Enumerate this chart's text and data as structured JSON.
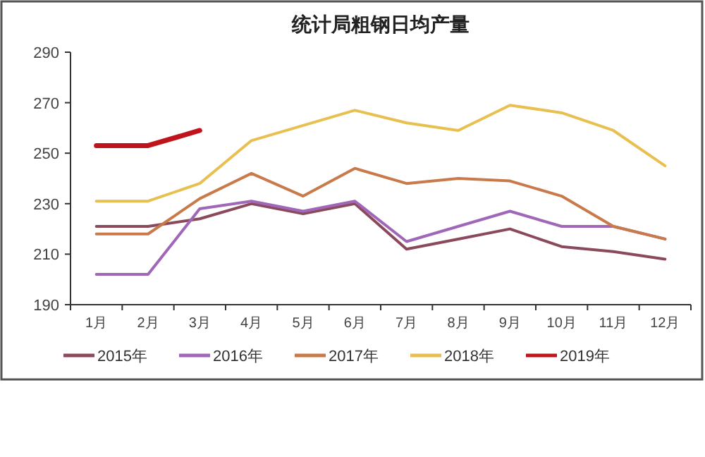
{
  "chart_data": {
    "type": "line",
    "title": "统计局粗钢日均产量",
    "categories": [
      "1月",
      "2月",
      "3月",
      "4月",
      "5月",
      "6月",
      "7月",
      "8月",
      "9月",
      "10月",
      "11月",
      "12月"
    ],
    "ylim": [
      190,
      290
    ],
    "yticks": [
      190,
      210,
      230,
      250,
      270,
      290
    ],
    "grid": false,
    "legend": "bottom",
    "marker": "none",
    "line_style": "solid",
    "series": [
      {
        "name": "2015年",
        "color": "#8b4a5c",
        "values": [
          221,
          221,
          224,
          230,
          226,
          230,
          212,
          216,
          220,
          213,
          211,
          208
        ]
      },
      {
        "name": "2016年",
        "color": "#a066b8",
        "values": [
          202,
          202,
          228,
          231,
          227,
          231,
          215,
          221,
          227,
          221,
          221,
          216
        ]
      },
      {
        "name": "2017年",
        "color": "#c87a4a",
        "values": [
          218,
          218,
          232,
          242,
          233,
          244,
          238,
          240,
          239,
          233,
          221,
          216
        ]
      },
      {
        "name": "2018年",
        "color": "#e8c050",
        "values": [
          231,
          231,
          238,
          255,
          261,
          267,
          262,
          259,
          269,
          266,
          259,
          245
        ]
      },
      {
        "name": "2019年",
        "color": "#c0141c",
        "values": [
          253,
          253,
          259,
          null,
          null,
          null,
          null,
          null,
          null,
          null,
          null,
          null
        ]
      }
    ]
  }
}
